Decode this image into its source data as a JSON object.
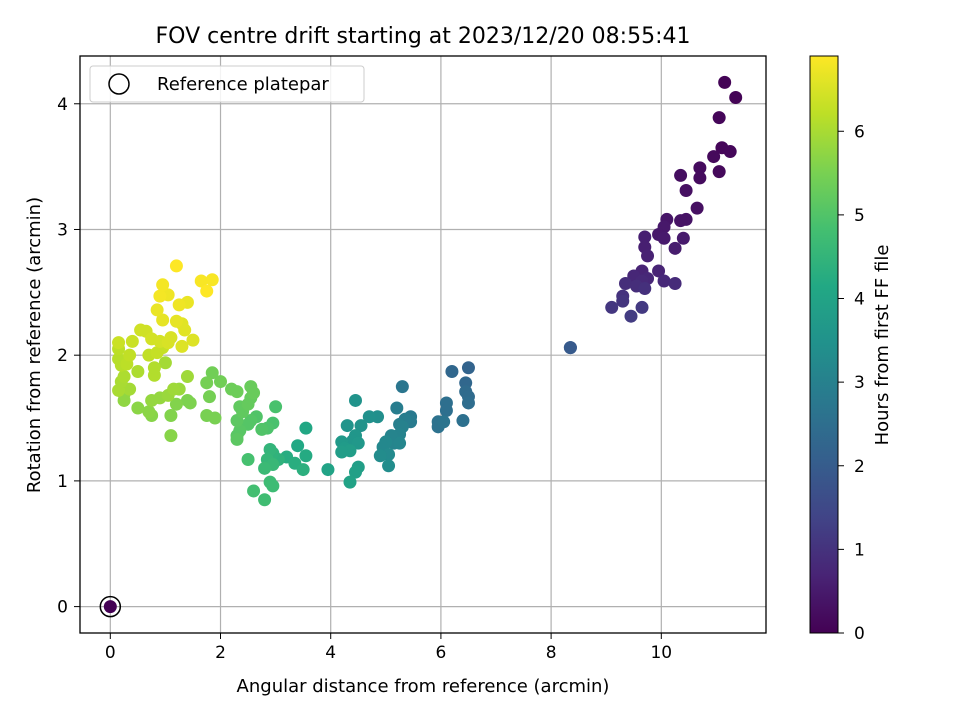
{
  "chart_data": {
    "type": "scatter",
    "title": "FOV centre drift starting at 2023/12/20 08:55:41",
    "xlabel": "Angular distance from reference (arcmin)",
    "ylabel": "Rotation from reference (arcmin)",
    "xlim": [
      -0.55,
      11.9
    ],
    "ylim": [
      -0.21,
      4.38
    ],
    "x_ticks": [
      0,
      2,
      4,
      6,
      8,
      10
    ],
    "y_ticks": [
      0,
      1,
      2,
      3,
      4
    ],
    "grid": true,
    "legend": {
      "placement": "top-left",
      "entries": [
        "Reference platepar"
      ]
    },
    "colorbar": {
      "label": "Hours from first FF file",
      "range": [
        0,
        6.9
      ],
      "ticks": [
        0,
        1,
        2,
        3,
        4,
        5,
        6
      ],
      "colormap": "viridis"
    },
    "reference_point": {
      "x": 0,
      "y": 0
    },
    "points": [
      {
        "x": 0.0,
        "y": 0.0,
        "h": 0.0
      },
      {
        "x": 11.15,
        "y": 4.17,
        "h": 0.05
      },
      {
        "x": 11.35,
        "y": 4.05,
        "h": 0.05
      },
      {
        "x": 11.05,
        "y": 3.89,
        "h": 0.1
      },
      {
        "x": 11.1,
        "y": 3.65,
        "h": 0.1
      },
      {
        "x": 11.25,
        "y": 3.62,
        "h": 0.12
      },
      {
        "x": 10.95,
        "y": 3.58,
        "h": 0.15
      },
      {
        "x": 11.05,
        "y": 3.46,
        "h": 0.15
      },
      {
        "x": 10.7,
        "y": 3.49,
        "h": 0.2
      },
      {
        "x": 10.7,
        "y": 3.41,
        "h": 0.2
      },
      {
        "x": 10.35,
        "y": 3.43,
        "h": 0.25
      },
      {
        "x": 10.45,
        "y": 3.31,
        "h": 0.3
      },
      {
        "x": 10.65,
        "y": 3.17,
        "h": 0.3
      },
      {
        "x": 10.45,
        "y": 3.08,
        "h": 0.35
      },
      {
        "x": 10.35,
        "y": 3.07,
        "h": 0.35
      },
      {
        "x": 10.1,
        "y": 3.08,
        "h": 0.4
      },
      {
        "x": 10.05,
        "y": 3.02,
        "h": 0.45
      },
      {
        "x": 9.95,
        "y": 2.96,
        "h": 0.45
      },
      {
        "x": 10.05,
        "y": 2.93,
        "h": 0.5
      },
      {
        "x": 10.4,
        "y": 2.93,
        "h": 0.5
      },
      {
        "x": 10.25,
        "y": 2.85,
        "h": 0.55
      },
      {
        "x": 9.7,
        "y": 2.94,
        "h": 0.6
      },
      {
        "x": 9.7,
        "y": 2.86,
        "h": 0.6
      },
      {
        "x": 9.75,
        "y": 2.79,
        "h": 0.65
      },
      {
        "x": 9.95,
        "y": 2.67,
        "h": 0.7
      },
      {
        "x": 9.65,
        "y": 2.67,
        "h": 0.7
      },
      {
        "x": 9.5,
        "y": 2.63,
        "h": 0.75
      },
      {
        "x": 9.75,
        "y": 2.61,
        "h": 0.75
      },
      {
        "x": 9.65,
        "y": 2.59,
        "h": 0.8
      },
      {
        "x": 10.05,
        "y": 2.59,
        "h": 0.8
      },
      {
        "x": 10.25,
        "y": 2.57,
        "h": 0.85
      },
      {
        "x": 9.35,
        "y": 2.57,
        "h": 0.9
      },
      {
        "x": 9.55,
        "y": 2.55,
        "h": 0.9
      },
      {
        "x": 9.7,
        "y": 2.53,
        "h": 0.95
      },
      {
        "x": 9.3,
        "y": 2.47,
        "h": 1.0
      },
      {
        "x": 9.3,
        "y": 2.43,
        "h": 1.05
      },
      {
        "x": 9.1,
        "y": 2.38,
        "h": 1.1
      },
      {
        "x": 9.65,
        "y": 2.38,
        "h": 1.15
      },
      {
        "x": 9.45,
        "y": 2.31,
        "h": 1.2
      },
      {
        "x": 8.35,
        "y": 2.06,
        "h": 1.9
      },
      {
        "x": 8.35,
        "y": 2.06,
        "h": 1.95
      },
      {
        "x": 6.5,
        "y": 1.9,
        "h": 2.2
      },
      {
        "x": 6.2,
        "y": 1.87,
        "h": 2.3
      },
      {
        "x": 6.45,
        "y": 1.78,
        "h": 2.3
      },
      {
        "x": 6.45,
        "y": 1.71,
        "h": 2.4
      },
      {
        "x": 6.5,
        "y": 1.67,
        "h": 2.4
      },
      {
        "x": 6.5,
        "y": 1.62,
        "h": 2.45
      },
      {
        "x": 6.1,
        "y": 1.62,
        "h": 2.5
      },
      {
        "x": 6.1,
        "y": 1.56,
        "h": 2.5
      },
      {
        "x": 6.4,
        "y": 1.48,
        "h": 2.55
      },
      {
        "x": 5.95,
        "y": 1.47,
        "h": 2.6
      },
      {
        "x": 5.95,
        "y": 1.43,
        "h": 2.6
      },
      {
        "x": 6.05,
        "y": 1.47,
        "h": 2.65
      },
      {
        "x": 5.3,
        "y": 1.75,
        "h": 2.7
      },
      {
        "x": 5.45,
        "y": 1.51,
        "h": 2.8
      },
      {
        "x": 5.45,
        "y": 1.47,
        "h": 2.85
      },
      {
        "x": 5.35,
        "y": 1.49,
        "h": 2.9
      },
      {
        "x": 5.2,
        "y": 1.58,
        "h": 2.9
      },
      {
        "x": 5.25,
        "y": 1.45,
        "h": 2.95
      },
      {
        "x": 5.3,
        "y": 1.43,
        "h": 3.0
      },
      {
        "x": 5.25,
        "y": 1.37,
        "h": 3.05
      },
      {
        "x": 5.1,
        "y": 1.36,
        "h": 3.1
      },
      {
        "x": 5.15,
        "y": 1.3,
        "h": 3.1
      },
      {
        "x": 5.25,
        "y": 1.3,
        "h": 3.15
      },
      {
        "x": 5.0,
        "y": 1.31,
        "h": 3.2
      },
      {
        "x": 4.95,
        "y": 1.27,
        "h": 3.2
      },
      {
        "x": 5.05,
        "y": 1.21,
        "h": 3.25
      },
      {
        "x": 4.9,
        "y": 1.2,
        "h": 3.3
      },
      {
        "x": 5.05,
        "y": 1.12,
        "h": 3.35
      },
      {
        "x": 4.85,
        "y": 1.51,
        "h": 3.4
      },
      {
        "x": 4.7,
        "y": 1.51,
        "h": 3.45
      },
      {
        "x": 4.55,
        "y": 1.44,
        "h": 3.5
      },
      {
        "x": 4.45,
        "y": 1.64,
        "h": 3.5
      },
      {
        "x": 4.3,
        "y": 1.44,
        "h": 3.55
      },
      {
        "x": 4.45,
        "y": 1.36,
        "h": 3.6
      },
      {
        "x": 4.4,
        "y": 1.32,
        "h": 3.6
      },
      {
        "x": 4.5,
        "y": 1.3,
        "h": 3.65
      },
      {
        "x": 4.2,
        "y": 1.31,
        "h": 3.7
      },
      {
        "x": 4.25,
        "y": 1.26,
        "h": 3.75
      },
      {
        "x": 4.35,
        "y": 1.24,
        "h": 3.8
      },
      {
        "x": 4.2,
        "y": 1.23,
        "h": 3.8
      },
      {
        "x": 4.5,
        "y": 1.11,
        "h": 3.85
      },
      {
        "x": 4.45,
        "y": 1.07,
        "h": 3.9
      },
      {
        "x": 4.35,
        "y": 0.99,
        "h": 3.95
      },
      {
        "x": 3.95,
        "y": 1.09,
        "h": 4.0
      },
      {
        "x": 3.55,
        "y": 1.42,
        "h": 4.1
      },
      {
        "x": 3.4,
        "y": 1.28,
        "h": 4.15
      },
      {
        "x": 3.55,
        "y": 1.2,
        "h": 4.2
      },
      {
        "x": 3.2,
        "y": 1.19,
        "h": 4.25
      },
      {
        "x": 3.35,
        "y": 1.14,
        "h": 4.3
      },
      {
        "x": 3.5,
        "y": 1.09,
        "h": 4.35
      },
      {
        "x": 3.05,
        "y": 1.17,
        "h": 4.4
      },
      {
        "x": 2.95,
        "y": 1.22,
        "h": 4.45
      },
      {
        "x": 2.9,
        "y": 1.25,
        "h": 4.5
      },
      {
        "x": 2.85,
        "y": 1.17,
        "h": 4.55
      },
      {
        "x": 2.95,
        "y": 1.13,
        "h": 4.6
      },
      {
        "x": 2.8,
        "y": 1.1,
        "h": 4.65
      },
      {
        "x": 2.9,
        "y": 0.99,
        "h": 4.7
      },
      {
        "x": 2.95,
        "y": 0.96,
        "h": 4.7
      },
      {
        "x": 2.8,
        "y": 0.85,
        "h": 4.75
      },
      {
        "x": 2.6,
        "y": 0.92,
        "h": 4.8
      },
      {
        "x": 2.5,
        "y": 1.17,
        "h": 4.85
      },
      {
        "x": 3.0,
        "y": 1.59,
        "h": 4.9
      },
      {
        "x": 2.95,
        "y": 1.46,
        "h": 4.9
      },
      {
        "x": 2.85,
        "y": 1.42,
        "h": 4.95
      },
      {
        "x": 2.75,
        "y": 1.41,
        "h": 5.0
      },
      {
        "x": 2.65,
        "y": 1.51,
        "h": 5.0
      },
      {
        "x": 2.55,
        "y": 1.48,
        "h": 5.05
      },
      {
        "x": 2.5,
        "y": 1.45,
        "h": 5.05
      },
      {
        "x": 2.35,
        "y": 1.4,
        "h": 5.1
      },
      {
        "x": 2.3,
        "y": 1.36,
        "h": 5.1
      },
      {
        "x": 2.3,
        "y": 1.33,
        "h": 5.15
      },
      {
        "x": 2.3,
        "y": 1.48,
        "h": 5.15
      },
      {
        "x": 2.4,
        "y": 1.55,
        "h": 5.2
      },
      {
        "x": 2.35,
        "y": 1.59,
        "h": 5.2
      },
      {
        "x": 2.5,
        "y": 1.61,
        "h": 5.25
      },
      {
        "x": 2.55,
        "y": 1.66,
        "h": 5.25
      },
      {
        "x": 2.6,
        "y": 1.7,
        "h": 5.3
      },
      {
        "x": 2.55,
        "y": 1.75,
        "h": 5.3
      },
      {
        "x": 2.2,
        "y": 1.73,
        "h": 5.35
      },
      {
        "x": 2.3,
        "y": 1.71,
        "h": 5.35
      },
      {
        "x": 2.0,
        "y": 1.79,
        "h": 5.4
      },
      {
        "x": 1.85,
        "y": 1.86,
        "h": 5.4
      },
      {
        "x": 1.75,
        "y": 1.78,
        "h": 5.45
      },
      {
        "x": 1.8,
        "y": 1.67,
        "h": 5.45
      },
      {
        "x": 1.75,
        "y": 1.52,
        "h": 5.5
      },
      {
        "x": 1.9,
        "y": 1.5,
        "h": 5.5
      },
      {
        "x": 1.45,
        "y": 1.62,
        "h": 5.55
      },
      {
        "x": 1.4,
        "y": 1.64,
        "h": 5.55
      },
      {
        "x": 1.2,
        "y": 1.61,
        "h": 5.6
      },
      {
        "x": 1.1,
        "y": 1.52,
        "h": 5.6
      },
      {
        "x": 1.1,
        "y": 1.36,
        "h": 5.65
      },
      {
        "x": 0.75,
        "y": 1.52,
        "h": 5.65
      },
      {
        "x": 0.7,
        "y": 1.55,
        "h": 5.7
      },
      {
        "x": 0.5,
        "y": 1.58,
        "h": 5.7
      },
      {
        "x": 0.25,
        "y": 1.64,
        "h": 5.75
      },
      {
        "x": 0.25,
        "y": 1.69,
        "h": 5.75
      },
      {
        "x": 0.75,
        "y": 1.64,
        "h": 5.8
      },
      {
        "x": 0.9,
        "y": 1.66,
        "h": 5.8
      },
      {
        "x": 1.05,
        "y": 1.68,
        "h": 5.85
      },
      {
        "x": 1.25,
        "y": 1.73,
        "h": 5.85
      },
      {
        "x": 1.15,
        "y": 1.73,
        "h": 5.9
      },
      {
        "x": 1.4,
        "y": 1.83,
        "h": 5.9
      },
      {
        "x": 1.0,
        "y": 1.94,
        "h": 5.95
      },
      {
        "x": 0.35,
        "y": 1.73,
        "h": 5.95
      },
      {
        "x": 0.15,
        "y": 1.72,
        "h": 6.0
      },
      {
        "x": 0.2,
        "y": 1.79,
        "h": 6.0
      },
      {
        "x": 0.25,
        "y": 1.83,
        "h": 6.05
      },
      {
        "x": 0.5,
        "y": 1.87,
        "h": 6.05
      },
      {
        "x": 0.8,
        "y": 1.84,
        "h": 6.1
      },
      {
        "x": 0.8,
        "y": 1.9,
        "h": 6.1
      },
      {
        "x": 0.2,
        "y": 1.92,
        "h": 6.15
      },
      {
        "x": 0.15,
        "y": 1.97,
        "h": 6.15
      },
      {
        "x": 0.3,
        "y": 1.93,
        "h": 6.2
      },
      {
        "x": 0.15,
        "y": 2.05,
        "h": 6.2
      },
      {
        "x": 0.35,
        "y": 2.0,
        "h": 6.25
      },
      {
        "x": 0.7,
        "y": 2.0,
        "h": 6.25
      },
      {
        "x": 0.85,
        "y": 2.02,
        "h": 6.3
      },
      {
        "x": 0.95,
        "y": 2.06,
        "h": 6.3
      },
      {
        "x": 0.15,
        "y": 2.1,
        "h": 6.35
      },
      {
        "x": 0.4,
        "y": 2.11,
        "h": 6.35
      },
      {
        "x": 0.55,
        "y": 2.2,
        "h": 6.4
      },
      {
        "x": 0.65,
        "y": 2.19,
        "h": 6.4
      },
      {
        "x": 0.75,
        "y": 2.13,
        "h": 6.45
      },
      {
        "x": 0.9,
        "y": 2.11,
        "h": 6.45
      },
      {
        "x": 1.05,
        "y": 2.1,
        "h": 6.5
      },
      {
        "x": 1.1,
        "y": 2.14,
        "h": 6.5
      },
      {
        "x": 1.3,
        "y": 2.07,
        "h": 6.55
      },
      {
        "x": 1.5,
        "y": 2.12,
        "h": 6.55
      },
      {
        "x": 1.35,
        "y": 2.2,
        "h": 6.6
      },
      {
        "x": 1.3,
        "y": 2.25,
        "h": 6.6
      },
      {
        "x": 1.2,
        "y": 2.27,
        "h": 6.65
      },
      {
        "x": 0.95,
        "y": 2.28,
        "h": 6.65
      },
      {
        "x": 0.85,
        "y": 2.36,
        "h": 6.7
      },
      {
        "x": 1.4,
        "y": 2.42,
        "h": 6.7
      },
      {
        "x": 1.25,
        "y": 2.4,
        "h": 6.75
      },
      {
        "x": 1.05,
        "y": 2.48,
        "h": 6.75
      },
      {
        "x": 0.9,
        "y": 2.47,
        "h": 6.8
      },
      {
        "x": 0.95,
        "y": 2.56,
        "h": 6.8
      },
      {
        "x": 1.65,
        "y": 2.59,
        "h": 6.85
      },
      {
        "x": 1.85,
        "y": 2.6,
        "h": 6.85
      },
      {
        "x": 1.75,
        "y": 2.51,
        "h": 6.9
      },
      {
        "x": 1.2,
        "y": 2.71,
        "h": 6.9
      }
    ]
  }
}
